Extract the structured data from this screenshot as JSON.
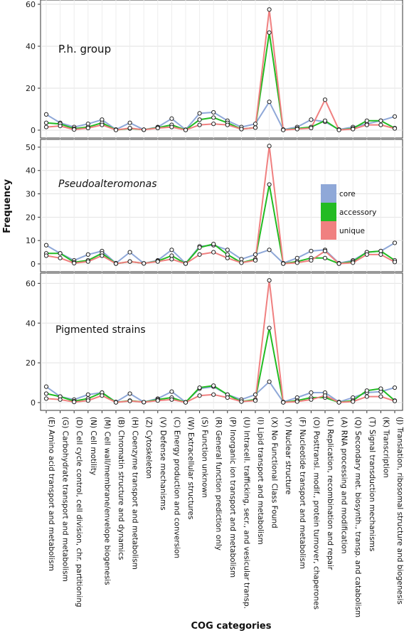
{
  "chart_data": {
    "type": "line",
    "ylabel": "Frequency",
    "xlabel": "COG categories",
    "legend": {
      "placement": "right, inside middle panel",
      "entries": [
        {
          "name": "core",
          "color": "#8FA8D8"
        },
        {
          "name": "accessory",
          "color": "#22BB22"
        },
        {
          "name": "unique",
          "color": "#F08080"
        }
      ]
    },
    "grid": true,
    "categories": [
      "(E) Amino acid transport and metabolism",
      "(G) Carbohydrate transport and metabolism",
      "(D) Cell cycle control, cell division, chr. partitioning",
      "(N) Cell motility",
      "(M) Cell wall/membrane/envelope biogenesis",
      "(B) Chromatin structure and dynamics",
      "(H) Coenzyme transport and metabolism",
      "(Z) Cytoskeleton",
      "(V) Defense mechanisms",
      "(C) Energy production and conversion",
      "(W) Extracellular structures",
      "(S) Function unknown",
      "(R) General function prediction only",
      "(P) Inorganic ion transport and metabolism",
      "(U) Intracell. trafficking, secr., and vesicular transp.",
      "(I) Lipid transport and metabolism",
      "(X) No Functional Class Found",
      "(Y) Nuclear structure",
      "(F) Nucleotide transport and metabolism",
      "(O) Posttransl. modif., protein turnover, chaperones",
      "(L) Replication, recombination and repair",
      "(A) RNA processing and modification",
      "(Q) Secondary met. biosynth., transp. and catabolism",
      "(T) Signal transduction mechanisms",
      "(K) Transcription",
      "(J) Translation, ribosomal structure and biogenesis"
    ],
    "panels": [
      {
        "label": "P.h. group",
        "italic": false,
        "ylim": [
          0,
          60
        ],
        "yticks": [
          0,
          20,
          40,
          60
        ],
        "series": [
          {
            "name": "core",
            "values": [
              7.5,
              3.5,
              1.5,
              3,
              5,
              0.3,
              3.5,
              0.2,
              1.5,
              5.5,
              0.2,
              8,
              8.5,
              4.5,
              1.5,
              3,
              13.5,
              0.3,
              1.5,
              5,
              4,
              0.3,
              1.5,
              3,
              4.5,
              6.5
            ]
          },
          {
            "name": "accessory",
            "values": [
              3.5,
              3,
              0.7,
              1.5,
              3.5,
              0.1,
              0.8,
              0.2,
              1.2,
              2.5,
              0.1,
              5,
              6,
              3.5,
              0.5,
              1.2,
              46.5,
              0.1,
              0.8,
              1.5,
              4.5,
              0.1,
              0.8,
              4.5,
              4.5,
              1
            ]
          },
          {
            "name": "unique",
            "values": [
              1.5,
              2,
              0.3,
              1,
              2.5,
              0.1,
              1,
              0.2,
              1,
              1.5,
              0.1,
              2.5,
              3,
              2.5,
              0.5,
              1.2,
              57.5,
              0.1,
              0.5,
              1,
              14.5,
              0.1,
              0.5,
              2.5,
              2.5,
              0.8
            ]
          }
        ]
      },
      {
        "label": "Pseudoalteromonas",
        "italic": true,
        "ylim": [
          0,
          51.5
        ],
        "yticks": [
          0,
          10,
          20,
          30,
          40,
          50
        ],
        "series": [
          {
            "name": "core",
            "values": [
              8,
              4.5,
              1.5,
              4,
              5.5,
              0.3,
              5,
              0.2,
              1.5,
              6,
              0.2,
              7.5,
              8,
              6,
              2,
              4,
              6,
              0.3,
              2.5,
              5.5,
              6,
              0.3,
              1.5,
              5,
              5.5,
              9
            ]
          },
          {
            "name": "accessory",
            "values": [
              4.5,
              4.5,
              0.7,
              1.5,
              4.5,
              0.1,
              1,
              0.2,
              1.2,
              3.5,
              0.1,
              7,
              8.5,
              4,
              0.5,
              2,
              34,
              0.1,
              1,
              2.5,
              2.5,
              0.1,
              1,
              5,
              5.5,
              1.5
            ]
          },
          {
            "name": "unique",
            "values": [
              3.5,
              2.5,
              0.3,
              1,
              3.5,
              0.1,
              1,
              0.2,
              1,
              2,
              0.1,
              4,
              5,
              2.5,
              0.5,
              1.5,
              50.5,
              0.1,
              0.5,
              1.5,
              5.5,
              0.1,
              0.5,
              4,
              4,
              0.8
            ]
          }
        ]
      },
      {
        "label": "Pigmented strains",
        "italic": false,
        "ylim": [
          0,
          63
        ],
        "yticks": [
          0,
          20,
          40,
          60
        ],
        "series": [
          {
            "name": "core",
            "values": [
              8,
              3,
              1.5,
              4,
              5,
              0.3,
              4.5,
              0.2,
              2,
              5.5,
              0.2,
              7,
              8,
              4,
              1.5,
              4,
              10.5,
              0.3,
              2.5,
              5,
              5,
              0.3,
              2.5,
              5,
              5.5,
              7.5
            ]
          },
          {
            "name": "accessory",
            "values": [
              4.5,
              3,
              0.7,
              2,
              5,
              0.1,
              1,
              0.2,
              1.5,
              2.5,
              0.1,
              7.5,
              8.5,
              4,
              0.5,
              1.5,
              37.5,
              0.1,
              1,
              2.5,
              2.5,
              0.1,
              1,
              6,
              7,
              1
            ]
          },
          {
            "name": "unique",
            "values": [
              2,
              1.5,
              0.3,
              1,
              3.5,
              0.1,
              0.8,
              0.2,
              1,
              1.5,
              0.1,
              3.5,
              4,
              2.5,
              0.5,
              1,
              61.5,
              0.1,
              0.5,
              1.5,
              3.5,
              0.1,
              0.5,
              3,
              3,
              0.8
            ]
          }
        ]
      }
    ]
  }
}
